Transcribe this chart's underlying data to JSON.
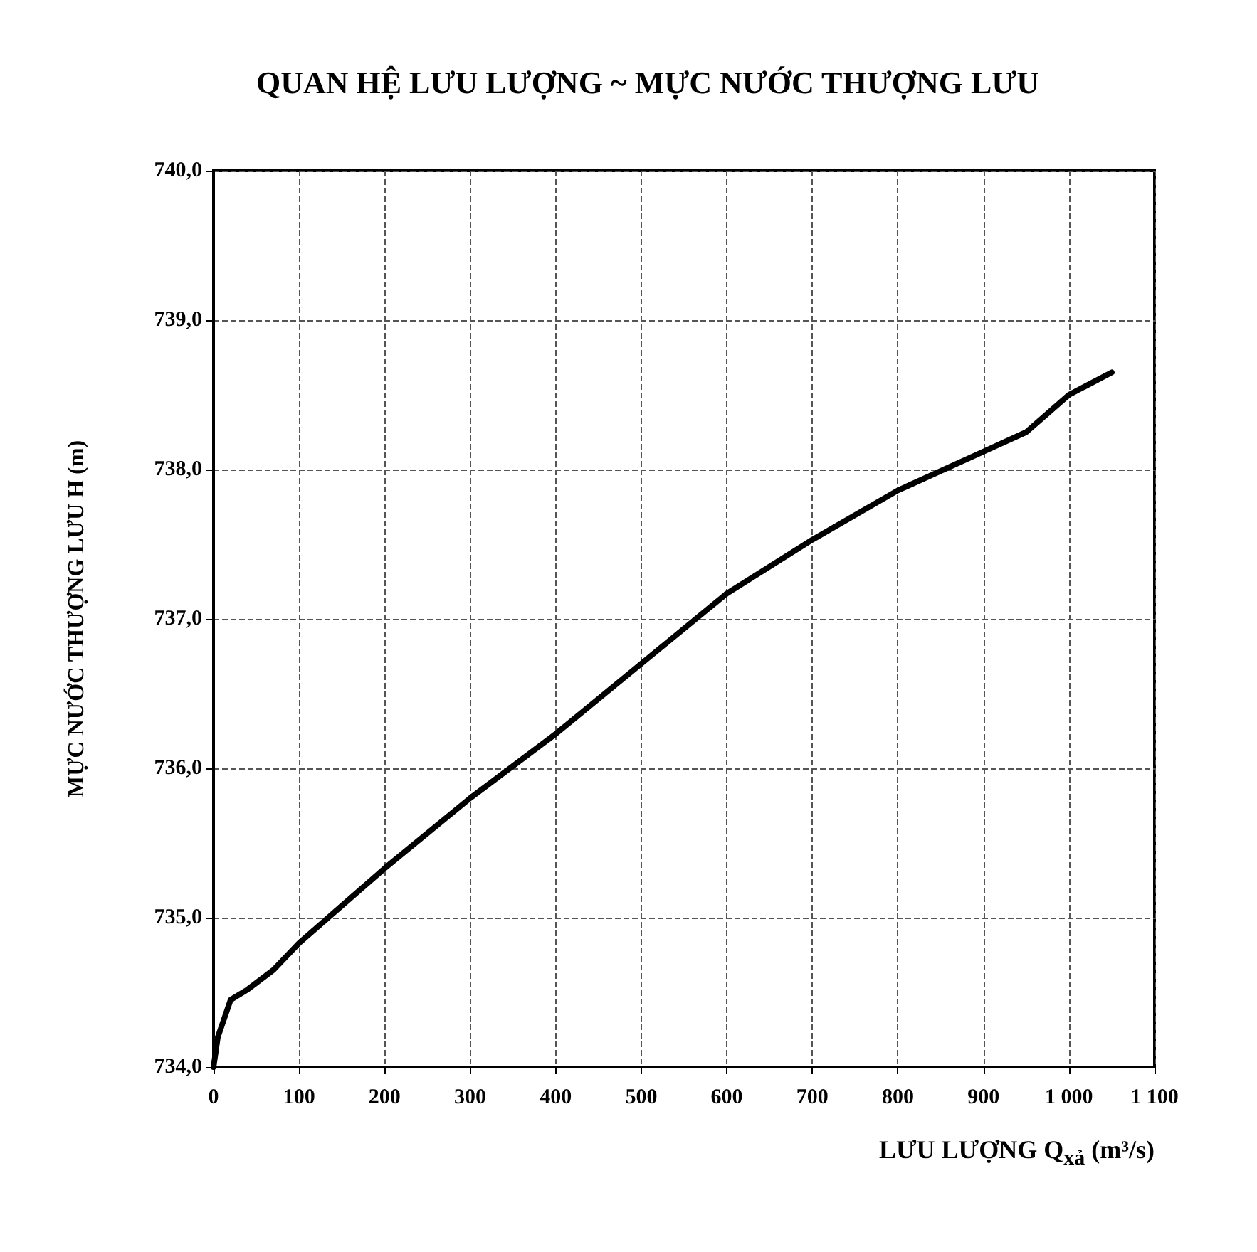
{
  "chart_data": {
    "type": "line",
    "title": "QUAN HỆ LƯU LƯỢNG ~ MỰC NƯỚC THƯỢNG LƯU",
    "xlabel": "LƯU LƯỢNG Q$_{xả}$ (m³/s)",
    "ylabel": "MỰC NƯỚC THƯỢNG LƯU H (m)",
    "x": [
      0,
      5,
      20,
      40,
      70,
      100,
      130,
      200,
      300,
      400,
      500,
      600,
      700,
      800,
      900,
      950,
      980,
      1000,
      1050
    ],
    "series": [
      {
        "color": "#000000",
        "values": [
          734.0,
          734.2,
          734.45,
          734.52,
          734.65,
          734.83,
          734.98,
          735.33,
          735.8,
          736.23,
          736.7,
          737.17,
          737.53,
          737.86,
          738.12,
          738.25,
          738.4,
          738.5,
          738.65
        ]
      }
    ],
    "xlim": [
      0,
      1100
    ],
    "xticks": [
      0,
      100,
      200,
      300,
      400,
      500,
      600,
      700,
      800,
      900,
      {
        "value": 1000,
        "label": "1 000"
      },
      {
        "value": 1100,
        "label": "1 100"
      }
    ],
    "ylim": [
      734,
      740
    ],
    "yticks": [
      {
        "value": 734,
        "label": "734,0"
      },
      {
        "value": 735,
        "label": "735,0"
      },
      {
        "value": 736,
        "label": "736,0"
      },
      {
        "value": 737,
        "label": "737,0"
      },
      {
        "value": 738,
        "label": "738,0"
      },
      {
        "value": 739,
        "label": "739,0"
      },
      {
        "value": 740,
        "label": "740,0"
      }
    ],
    "grid": true,
    "marker": "none",
    "line_style": "solid"
  }
}
